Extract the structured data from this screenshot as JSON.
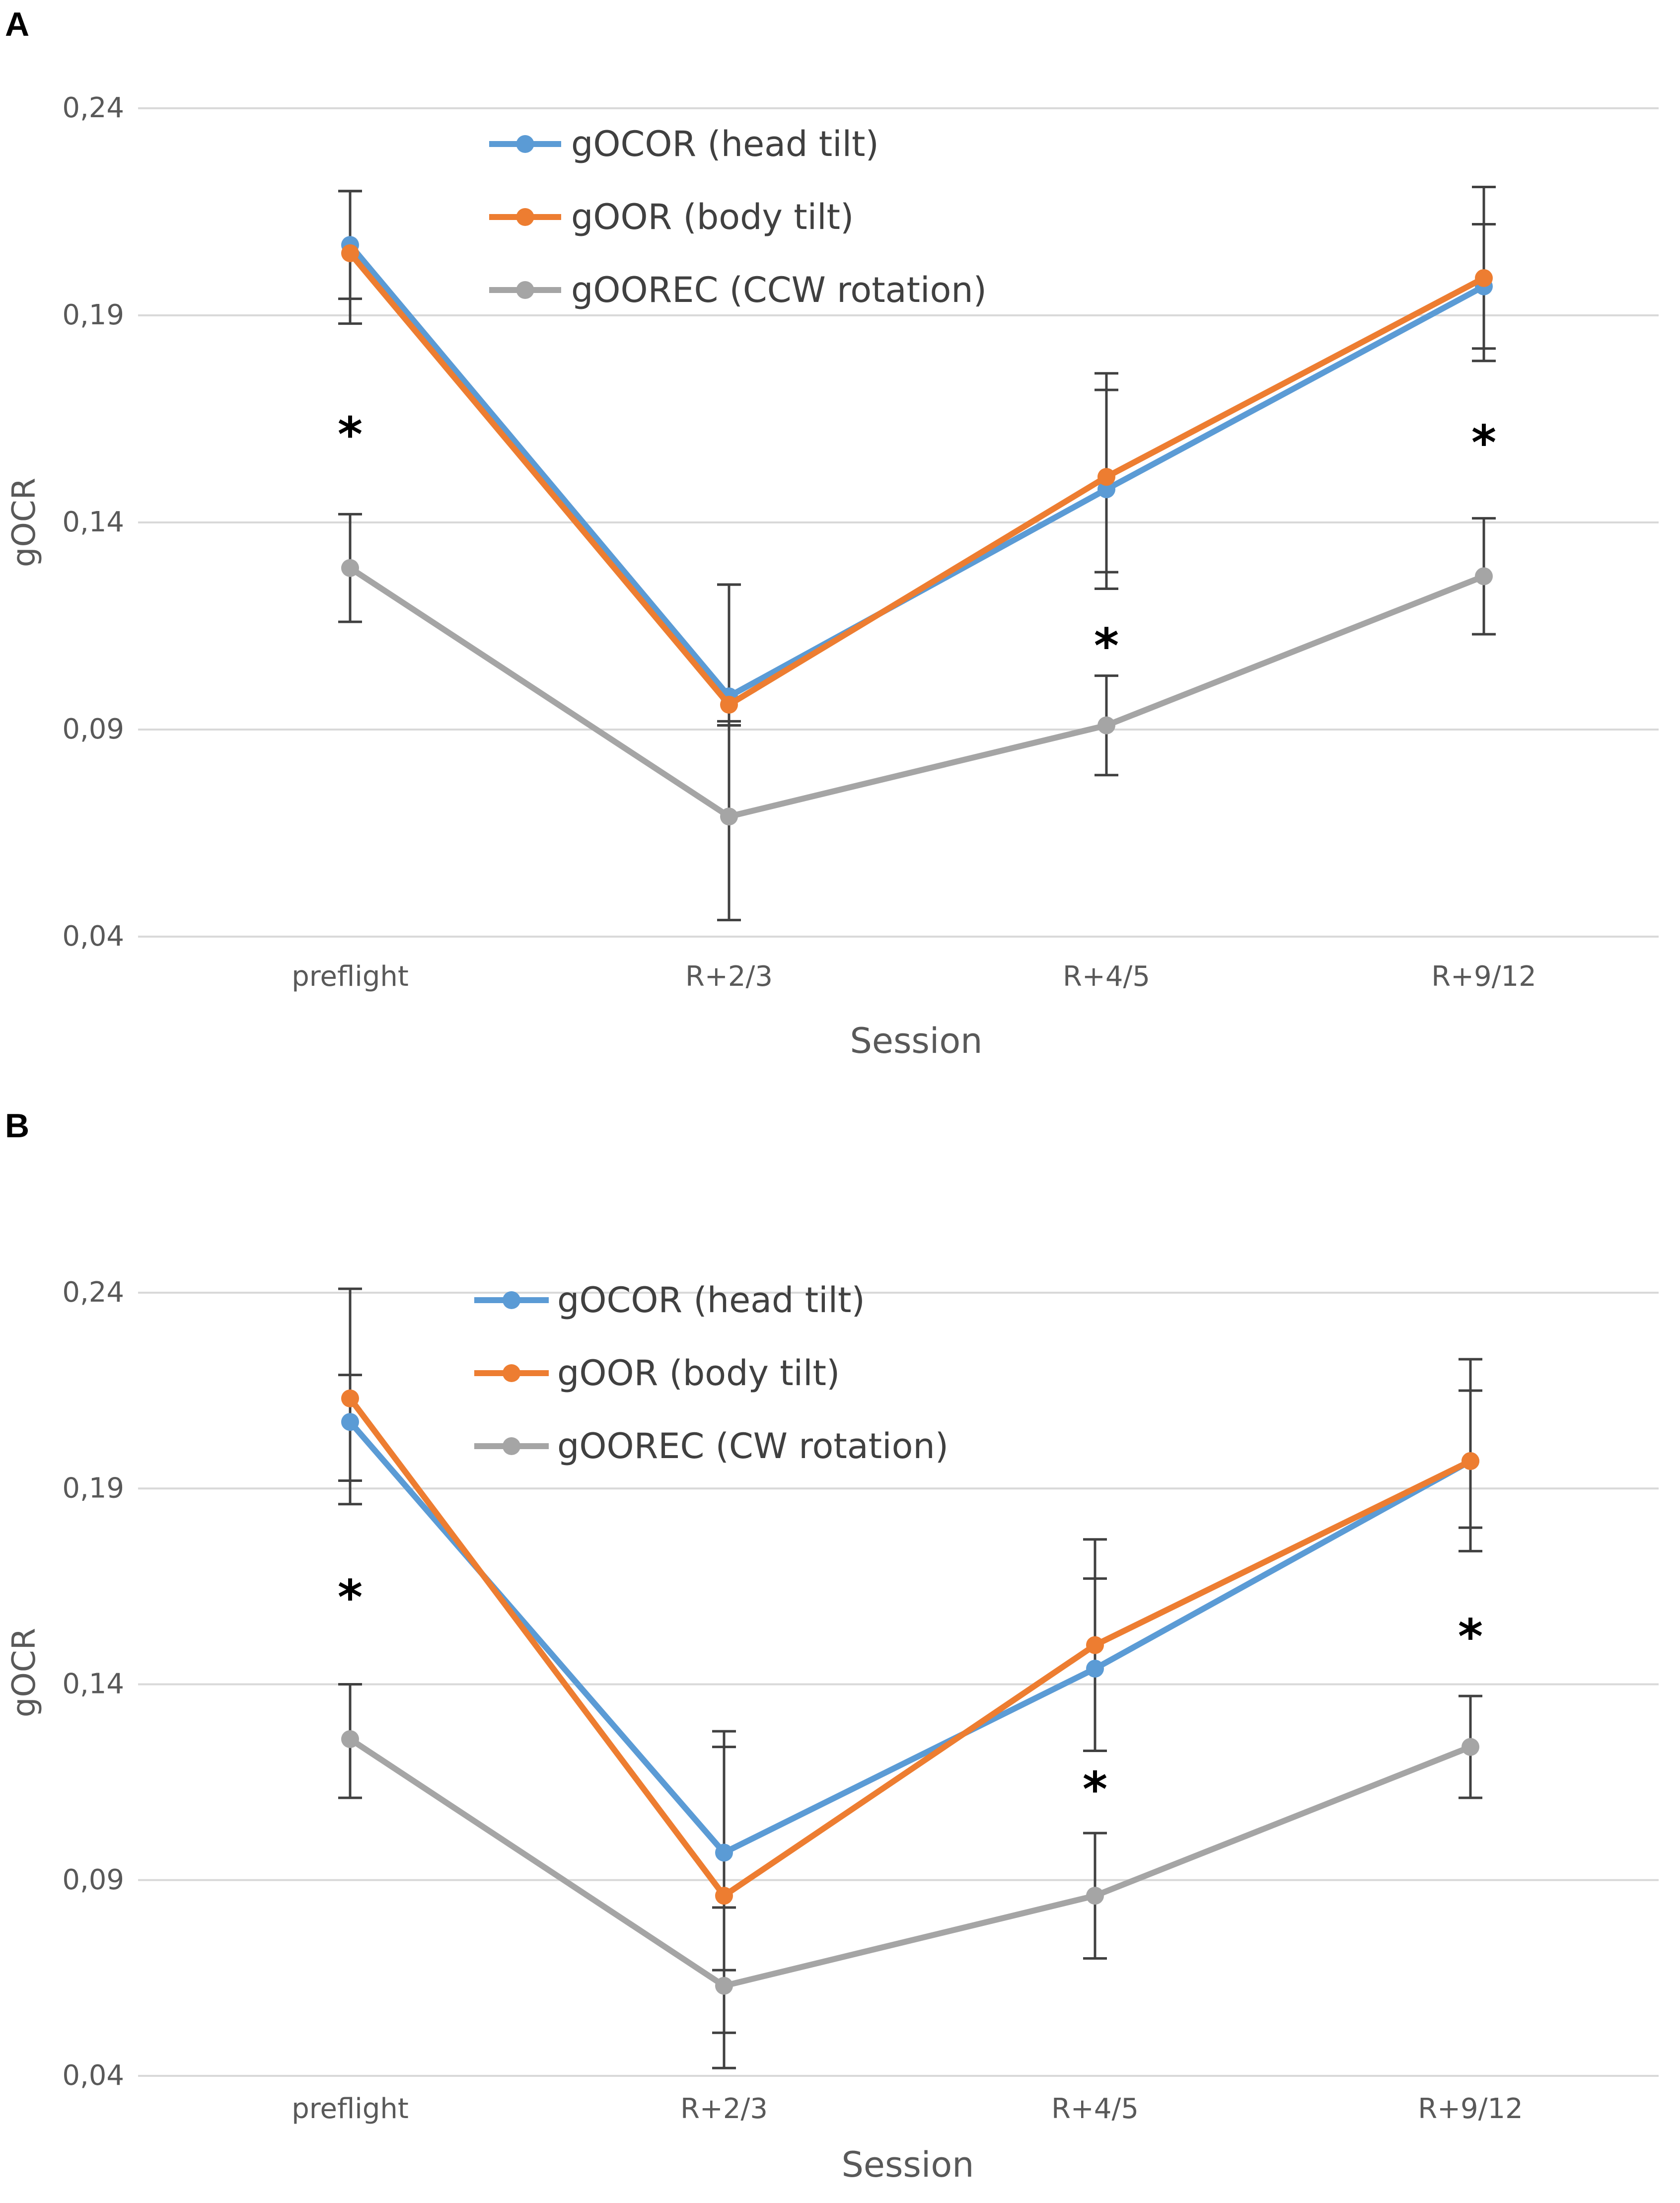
{
  "chart_data": [
    {
      "panel": "A",
      "type": "line",
      "title": "",
      "xlabel": "Session",
      "ylabel": "gOCR",
      "ylim": [
        0.04,
        0.24
      ],
      "yticks": [
        0.04,
        0.09,
        0.14,
        0.19,
        0.24
      ],
      "ytick_labels": [
        "0,04",
        "0,09",
        "0,14",
        "0,19",
        "0,24"
      ],
      "grid": true,
      "legend_position": "top-center",
      "categories": [
        "preflight",
        "R+2/3",
        "R+4/5",
        "R+9/12"
      ],
      "series": [
        {
          "name": "gOCOR (head tilt)",
          "color": "#5b9bd5",
          "values": [
            0.207,
            0.098,
            0.148,
            0.197
          ],
          "err_low": [
            0.188,
            0.091,
            0.124,
            0.182
          ],
          "err_high": [
            0.22,
            0.125,
            0.172,
            0.212
          ]
        },
        {
          "name": "gOOR (body tilt)",
          "color": "#ed7d31",
          "values": [
            0.205,
            0.096,
            0.151,
            0.199
          ],
          "err_low": [
            0.194,
            0.091,
            0.128,
            0.179
          ],
          "err_high": [
            0.22,
            0.125,
            0.176,
            0.221
          ]
        },
        {
          "name": "gOOREC (CCW rotation)",
          "color": "#a5a5a5",
          "values": [
            0.129,
            0.069,
            0.091,
            0.127
          ],
          "err_low": [
            0.116,
            0.044,
            0.079,
            0.113
          ],
          "err_high": [
            0.142,
            0.092,
            0.103,
            0.141
          ]
        }
      ],
      "annotations": [
        {
          "text": "*",
          "category": "preflight",
          "y": 0.162
        },
        {
          "text": "*",
          "category": "R+4/5",
          "y": 0.111
        },
        {
          "text": "*",
          "category": "R+9/12",
          "y": 0.16
        }
      ]
    },
    {
      "panel": "B",
      "type": "line",
      "title": "",
      "xlabel": "Session",
      "ylabel": "gOCR",
      "ylim": [
        0.04,
        0.24
      ],
      "yticks": [
        0.04,
        0.09,
        0.14,
        0.19,
        0.24
      ],
      "ytick_labels": [
        "0,04",
        "0,09",
        "0,14",
        "0,19",
        "0,24"
      ],
      "grid": true,
      "legend_position": "top-center",
      "categories": [
        "preflight",
        "R+2/3",
        "R+4/5",
        "R+9/12"
      ],
      "series": [
        {
          "name": "gOCOR (head tilt)",
          "color": "#5b9bd5",
          "values": [
            0.207,
            0.097,
            0.144,
            0.197
          ],
          "err_low": [
            0.192,
            0.083,
            0.123,
            0.18
          ],
          "err_high": [
            0.219,
            0.124,
            0.167,
            0.215
          ]
        },
        {
          "name": "gOOR (body tilt)",
          "color": "#ed7d31",
          "values": [
            0.213,
            0.086,
            0.15,
            0.197
          ],
          "err_low": [
            0.186,
            0.051,
            0.123,
            0.174
          ],
          "err_high": [
            0.241,
            0.128,
            0.177,
            0.223
          ]
        },
        {
          "name": "gOOREC (CW rotation)",
          "color": "#a5a5a5",
          "values": [
            0.126,
            0.063,
            0.086,
            0.124
          ],
          "err_low": [
            0.111,
            0.042,
            0.07,
            0.111
          ],
          "err_high": [
            0.14,
            0.067,
            0.102,
            0.137
          ]
        }
      ],
      "annotations": [
        {
          "text": "*",
          "category": "preflight",
          "y": 0.163
        },
        {
          "text": "*",
          "category": "R+4/5",
          "y": 0.114
        },
        {
          "text": "*",
          "category": "R+9/12",
          "y": 0.153
        }
      ]
    }
  ],
  "panels": [
    {
      "label": "A"
    },
    {
      "label": "B"
    }
  ]
}
